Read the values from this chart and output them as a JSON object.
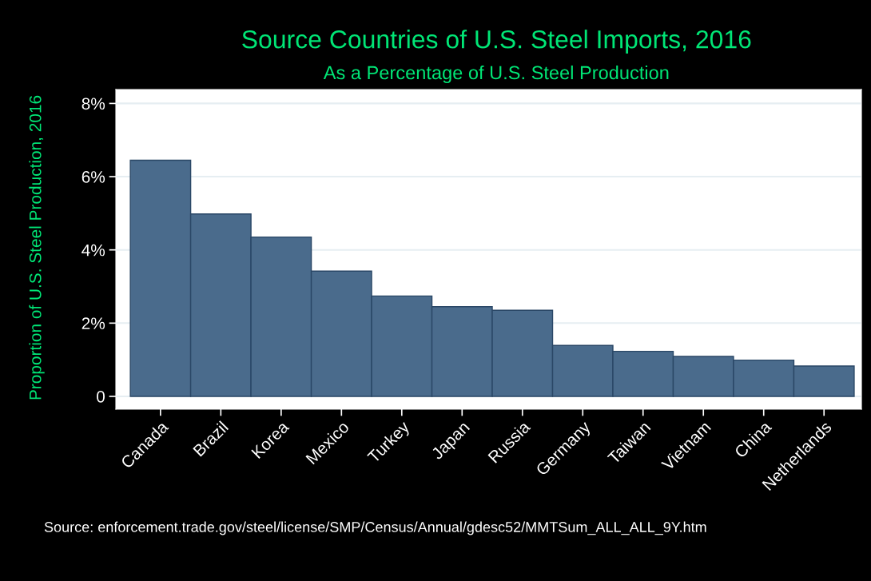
{
  "chart_data": {
    "type": "bar",
    "title": "Source Countries of U.S. Steel Imports, 2016",
    "subtitle": "As a Percentage of U.S. Steel Production",
    "ylabel": "Proportion of U.S. Steel Production, 2016",
    "categories": [
      "Canada",
      "Brazil",
      "Korea",
      "Mexico",
      "Turkey",
      "Japan",
      "Russia",
      "Germany",
      "Taiwan",
      "Vietnam",
      "China",
      "Netherlands"
    ],
    "values": [
      6.45,
      4.98,
      4.35,
      3.42,
      2.74,
      2.45,
      2.35,
      1.39,
      1.23,
      1.09,
      0.99,
      0.83
    ],
    "color": "#4a6b8c",
    "ylim": [
      -0.35,
      8.38
    ],
    "yticks": [
      0,
      {
        "value": 2,
        "label": "2%"
      },
      {
        "value": 4,
        "label": "4%"
      },
      {
        "value": 6,
        "label": "6%"
      },
      {
        "value": 8,
        "label": "8%"
      }
    ],
    "grid": "y",
    "annotations": [
      "Source: enforcement.trade.gov/steel/license/SMP/Census/Annual/gdesc52/MMTSum_ALL_ALL_9Y.htm"
    ]
  }
}
